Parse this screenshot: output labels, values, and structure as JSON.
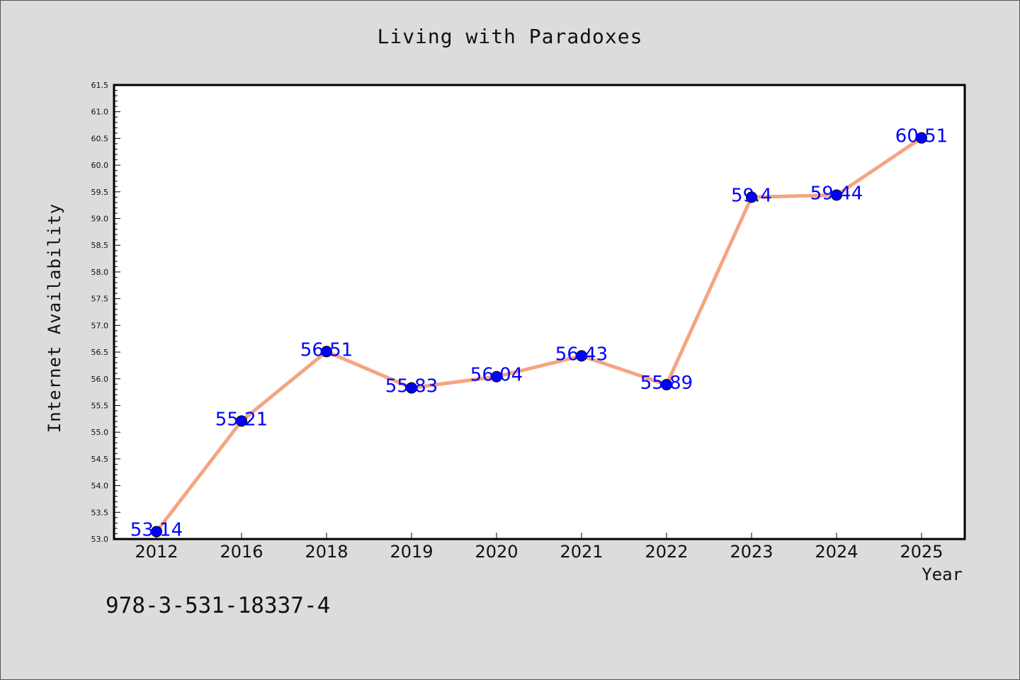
{
  "chart_data": {
    "type": "line",
    "title": "Living with Paradoxes",
    "xlabel": "Year",
    "ylabel": "Internet Availability",
    "categories": [
      "2012",
      "2016",
      "2018",
      "2019",
      "2020",
      "2021",
      "2022",
      "2023",
      "2024",
      "2025"
    ],
    "series": [
      {
        "values": [
          53.14,
          55.21,
          56.51,
          55.83,
          56.04,
          56.43,
          55.89,
          59.4,
          59.44,
          60.51
        ],
        "line_color": "#f4a582",
        "marker_color": "#0000ff",
        "data_labels": [
          "53.14",
          "55.21",
          "56.51",
          "55.83",
          "56.04",
          "56.43",
          "55.89",
          "59.4",
          "59.44",
          "60.51"
        ]
      }
    ],
    "ylim": [
      53.0,
      61.5
    ],
    "y_ticks": [
      "53.0",
      "53.5",
      "54.0",
      "54.5",
      "55.0",
      "55.5",
      "56.0",
      "56.5",
      "57.0",
      "57.5",
      "58.0",
      "58.5",
      "59.0",
      "59.5",
      "60.0",
      "60.5",
      "61.0",
      "61.5"
    ],
    "grid": false,
    "legend": "none",
    "background_color": "#dcdcdc",
    "plot_background": "#ffffff"
  },
  "footer": {
    "isbn": "978-3-531-18337-4"
  }
}
